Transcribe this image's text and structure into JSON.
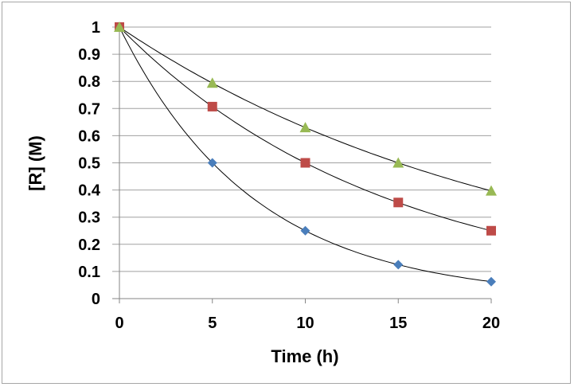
{
  "chart_data": {
    "type": "scatter",
    "title": "",
    "xlabel": "Time (h)",
    "ylabel": "[R] (M)",
    "xlim": [
      0,
      20
    ],
    "ylim": [
      0,
      1
    ],
    "xticks": [
      "0",
      "5",
      "10",
      "15",
      "20"
    ],
    "yticks": [
      "0",
      "0.1",
      "0.2",
      "0.3",
      "0.4",
      "0.5",
      "0.6",
      "0.7",
      "0.8",
      "0.9",
      "1"
    ],
    "grid": "horizontal",
    "legend": "none",
    "trendline": "exponential",
    "x": [
      0,
      5,
      10,
      15,
      20
    ],
    "series": [
      {
        "marker": "diamond",
        "color": "#4a7ebb",
        "values": [
          1,
          0.5,
          0.25,
          0.125,
          0.0625
        ],
        "half_life": 5
      },
      {
        "marker": "square",
        "color": "#be4b48",
        "values": [
          1,
          0.707,
          0.5,
          0.354,
          0.25
        ],
        "half_life": 10
      },
      {
        "marker": "triangle",
        "color": "#98b954",
        "values": [
          1,
          0.794,
          0.63,
          0.5,
          0.397
        ],
        "half_life": 15
      }
    ]
  }
}
